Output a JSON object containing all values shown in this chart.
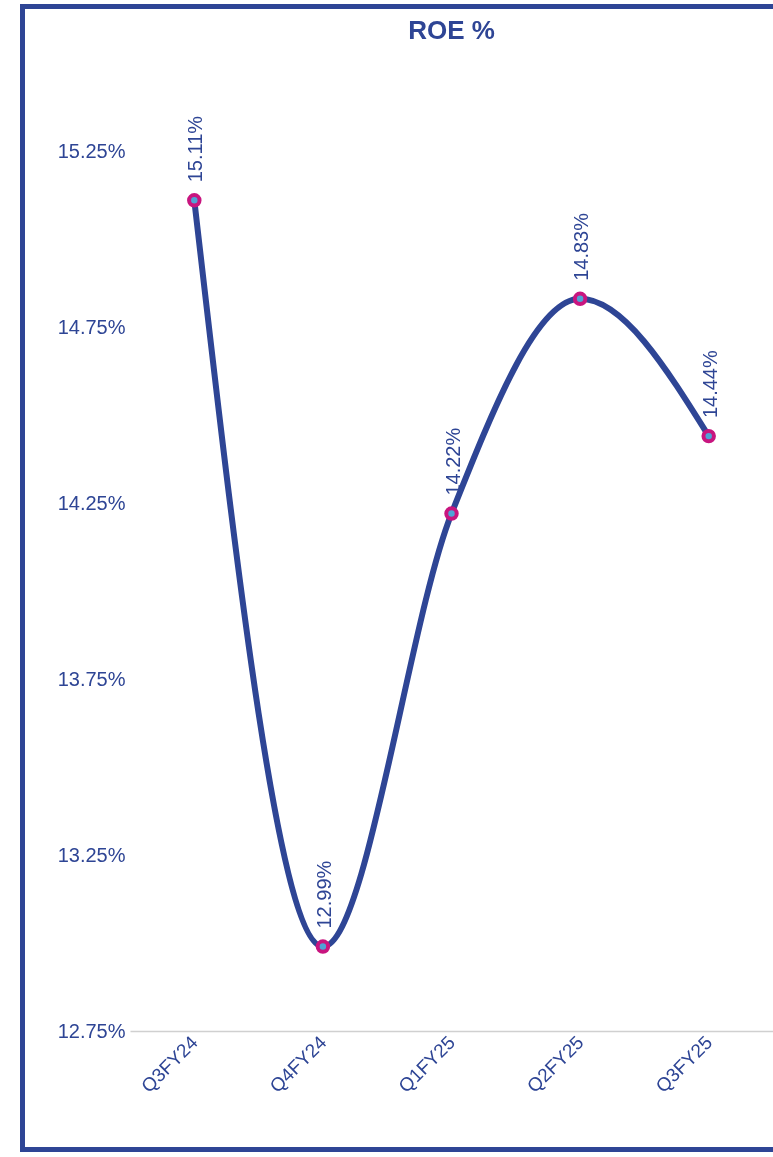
{
  "chart_data": {
    "type": "line",
    "title": "ROE %",
    "categories": [
      "Q3FY24",
      "Q4FY24",
      "Q1FY25",
      "Q2FY25",
      "Q3FY25"
    ],
    "series": [
      {
        "color": "#2e4595",
        "values": [
          15.11,
          12.99,
          14.22,
          14.83,
          14.44
        ],
        "value_labels": [
          "15.11%",
          "12.99%",
          "14.22%",
          "14.83%",
          "14.44%"
        ]
      }
    ],
    "ylim": [
      12.75,
      15.25
    ],
    "yticks": [
      {
        "value": 12.75,
        "label": "12.75%"
      },
      {
        "value": 13.25,
        "label": "13.25%"
      },
      {
        "value": 13.75,
        "label": "13.75%"
      },
      {
        "value": 14.25,
        "label": "14.25%"
      },
      {
        "value": 14.75,
        "label": "14.75%"
      },
      {
        "value": 15.25,
        "label": "15.25%"
      }
    ],
    "grid": false,
    "marker": "circle",
    "legend": false
  }
}
